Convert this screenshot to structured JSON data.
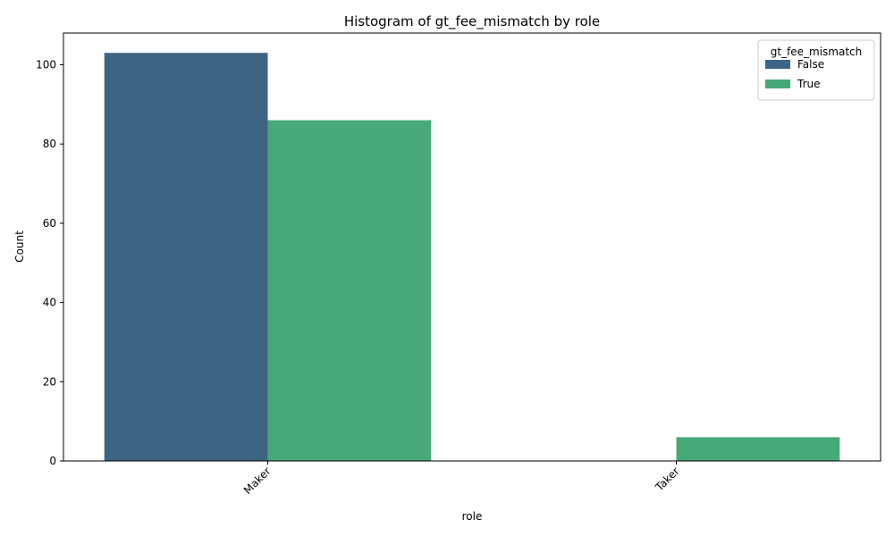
{
  "chart_data": {
    "type": "bar",
    "title": "Histogram of gt_fee_mismatch by role",
    "xlabel": "role",
    "ylabel": "Count",
    "categories": [
      "Maker",
      "Taker"
    ],
    "series": [
      {
        "name": "False",
        "values": [
          103,
          0
        ],
        "color": "#3e6583"
      },
      {
        "name": "True",
        "values": [
          86,
          6
        ],
        "color": "#47a978"
      }
    ],
    "ylim": [
      0,
      108
    ],
    "yticks": [
      0,
      20,
      40,
      60,
      80,
      100
    ],
    "legend": {
      "title": "gt_fee_mismatch",
      "placement": "top-right"
    },
    "grid": false
  }
}
